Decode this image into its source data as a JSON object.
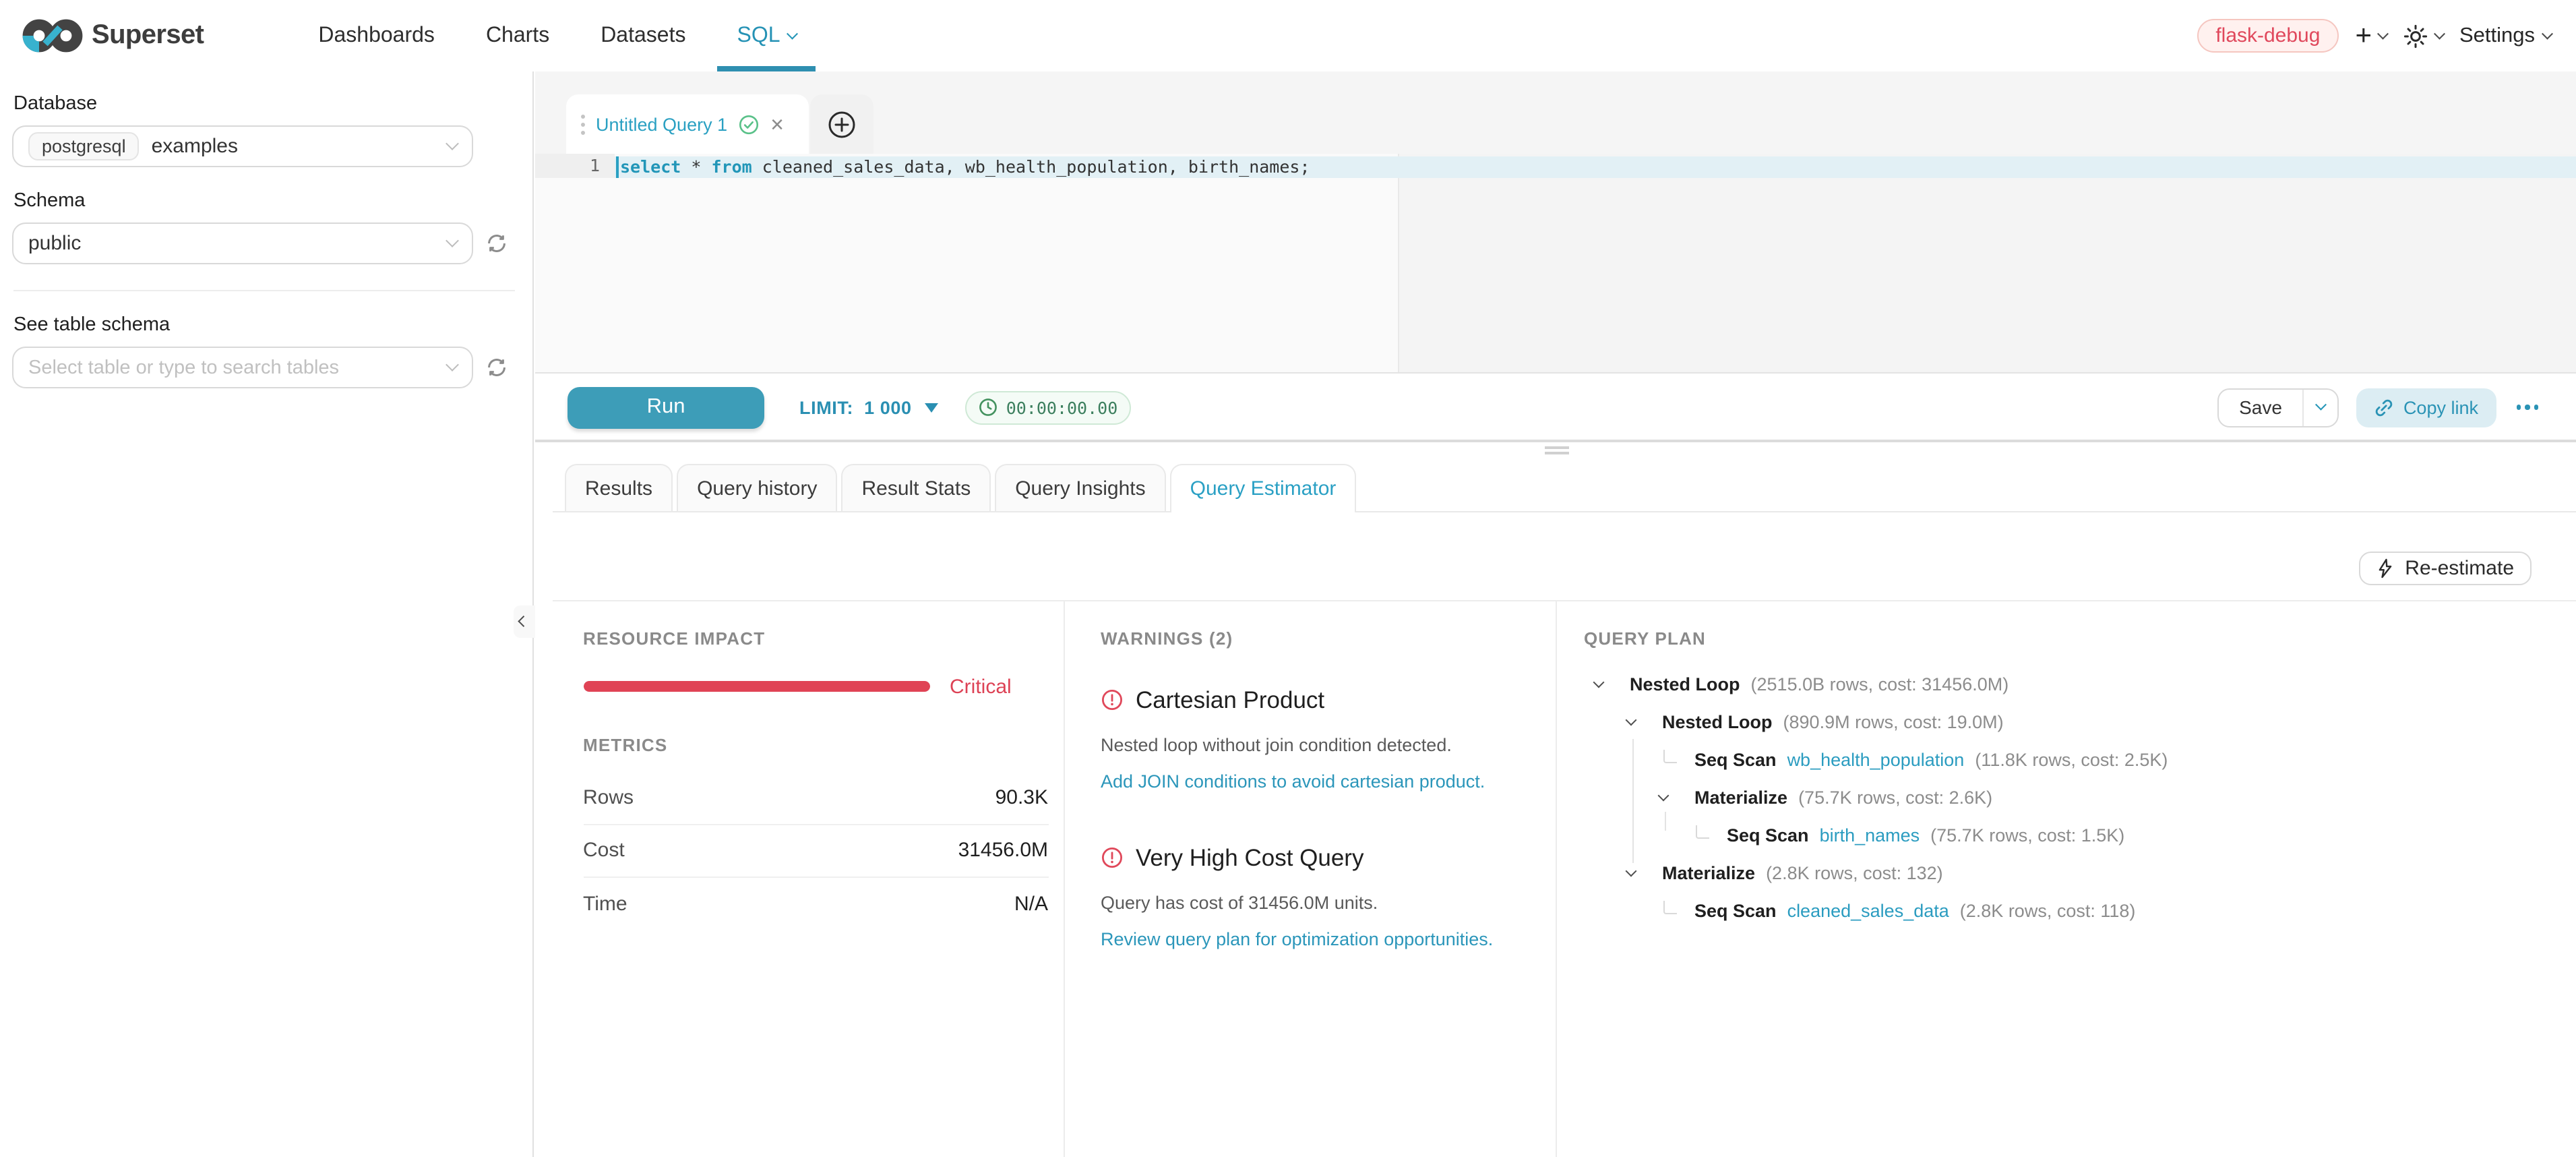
{
  "colors": {
    "accent_teal": "#2596b8",
    "critical_red": "#e04355",
    "success_green": "#5ac189",
    "env_badge_red": "#e0485c",
    "run_button": "#3d9db8"
  },
  "navbar": {
    "brand": "Superset",
    "items": [
      {
        "label": "Dashboards"
      },
      {
        "label": "Charts"
      },
      {
        "label": "Datasets"
      },
      {
        "label": "SQL"
      }
    ],
    "env_badge": "flask-debug",
    "new_label": "+",
    "settings_label": "Settings"
  },
  "sidebar": {
    "database_label": "Database",
    "database_engine_tag": "postgresql",
    "database_value": "examples",
    "schema_label": "Schema",
    "schema_value": "public",
    "table_label": "See table schema",
    "table_placeholder": "Select table or type to search tables"
  },
  "editor": {
    "tab_title": "Untitled Query 1",
    "line_number": "1",
    "code_kw1": "select",
    "code_mid": " * ",
    "code_kw2": "from",
    "code_rest": " cleaned_sales_data, wb_health_population, birth_names;"
  },
  "toolbar": {
    "run_label": "Run",
    "limit_label": "LIMIT:",
    "limit_value": "1 000",
    "timer_value": "00:00:00.00",
    "save_label": "Save",
    "copy_link_label": "Copy link"
  },
  "south_tabs": [
    {
      "label": "Results"
    },
    {
      "label": "Query history"
    },
    {
      "label": "Result Stats"
    },
    {
      "label": "Query Insights"
    },
    {
      "label": "Query Estimator"
    }
  ],
  "estimator": {
    "reestimate_label": "Re-estimate",
    "resource_title": "RESOURCE IMPACT",
    "resource_level": "Critical",
    "resource_percent": 100,
    "metrics_title": "METRICS",
    "metrics": [
      {
        "label": "Rows",
        "value": "90.3K"
      },
      {
        "label": "Cost",
        "value": "31456.0M"
      },
      {
        "label": "Time",
        "value": "N/A"
      }
    ],
    "warnings_title": "WARNINGS (2)",
    "warnings": [
      {
        "title": "Cartesian Product",
        "description": "Nested loop without join condition detected.",
        "action": "Add JOIN conditions to avoid cartesian product."
      },
      {
        "title": "Very High Cost Query",
        "description": "Query has cost of 31456.0M units.",
        "action": "Review query plan for optimization opportunities."
      }
    ],
    "plan_title": "QUERY PLAN",
    "plan": [
      {
        "name": "Nested Loop",
        "meta": "(2515.0B rows, cost: 31456.0M)"
      },
      {
        "name": "Nested Loop",
        "meta": "(890.9M rows, cost: 19.0M)"
      },
      {
        "name": "Seq Scan",
        "table": "wb_health_population",
        "meta": "(11.8K rows, cost: 2.5K)"
      },
      {
        "name": "Materialize",
        "meta": "(75.7K rows, cost: 2.6K)"
      },
      {
        "name": "Seq Scan",
        "table": "birth_names",
        "meta": "(75.7K rows, cost: 1.5K)"
      },
      {
        "name": "Materialize",
        "meta": "(2.8K rows, cost: 132)"
      },
      {
        "name": "Seq Scan",
        "table": "cleaned_sales_data",
        "meta": "(2.8K rows, cost: 118)"
      }
    ]
  }
}
